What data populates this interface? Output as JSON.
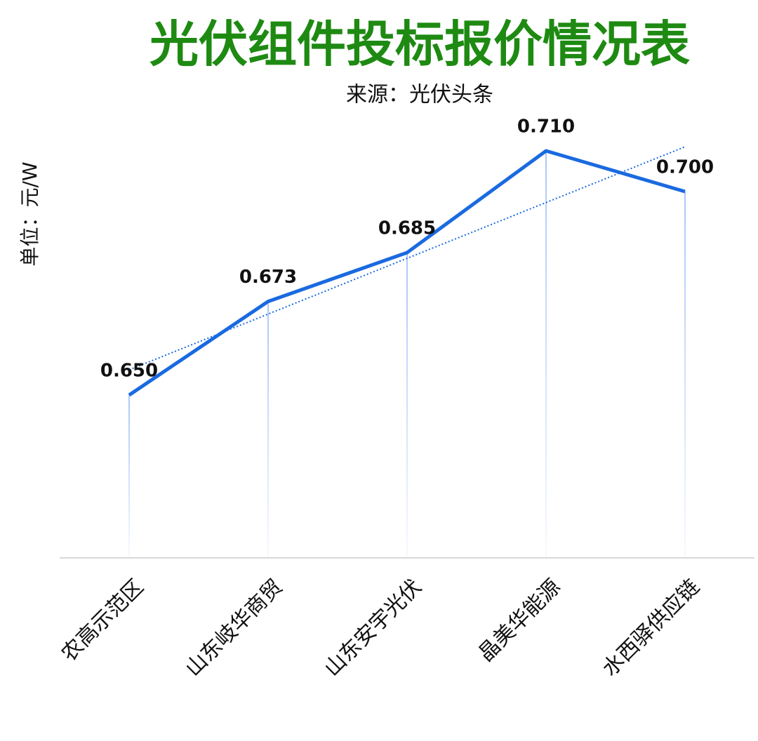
{
  "chart_data": {
    "type": "line",
    "title": "光伏组件投标报价情况表",
    "subtitle": "来源：光伏头条",
    "y_label": "单位：元/W",
    "categories": [
      "农高示范区",
      "山东岐华商贸",
      "山东安宇光伏",
      "晶美华能源",
      "水西驿供应链"
    ],
    "values": [
      0.65,
      0.673,
      0.685,
      0.71,
      0.7
    ],
    "value_labels": [
      "0.650",
      "0.673",
      "0.685",
      "0.710",
      "0.700"
    ],
    "color": "#1a6ae0",
    "title_color": "#1e8a12",
    "ylim": [
      0.61,
      0.72
    ],
    "trendline": true,
    "drop_lines": true
  }
}
